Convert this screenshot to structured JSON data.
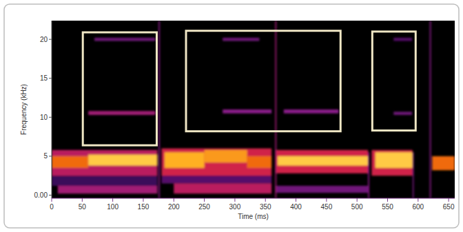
{
  "chart_data": {
    "type": "spectrogram",
    "x_label": "Time (ms)",
    "y_label": "Frequency (kHz)",
    "xlim": [
      0,
      660
    ],
    "ylim": [
      -0.4,
      22.4
    ],
    "xticks": [
      0,
      50,
      100,
      150,
      200,
      250,
      300,
      350,
      400,
      450,
      500,
      550,
      600,
      650
    ],
    "yticks": [
      {
        "value": 0,
        "label": "0.00"
      },
      5,
      10,
      15,
      20
    ],
    "cells": [
      [
        0,
        173,
        1.2,
        2.5,
        0.2
      ],
      [
        0,
        173,
        2.5,
        5.8,
        0.45
      ],
      [
        0,
        60,
        3.5,
        5.0,
        0.7
      ],
      [
        60,
        173,
        3.8,
        5.2,
        0.9
      ],
      [
        10,
        173,
        0.2,
        1.2,
        0.4
      ],
      [
        180,
        360,
        1.5,
        2.5,
        0.25
      ],
      [
        180,
        360,
        2.5,
        6.0,
        0.5
      ],
      [
        185,
        250,
        3.5,
        5.5,
        0.85
      ],
      [
        250,
        320,
        4.2,
        5.8,
        0.8
      ],
      [
        320,
        360,
        3.5,
        5.0,
        0.7
      ],
      [
        200,
        360,
        0.2,
        1.5,
        0.45
      ],
      [
        366,
        518,
        2.8,
        5.8,
        0.5
      ],
      [
        370,
        518,
        3.8,
        5.0,
        0.9
      ],
      [
        366,
        518,
        0.3,
        1.2,
        0.3
      ],
      [
        524,
        591,
        2.5,
        5.8,
        0.5
      ],
      [
        530,
        591,
        3.5,
        5.5,
        0.9
      ],
      [
        623,
        660,
        3.2,
        5.0,
        0.7
      ],
      [
        60,
        170,
        10.3,
        10.8,
        0.4
      ],
      [
        70,
        170,
        19.8,
        20.2,
        0.3
      ],
      [
        280,
        360,
        10.5,
        11.0,
        0.35
      ],
      [
        380,
        470,
        10.5,
        11.0,
        0.35
      ],
      [
        280,
        340,
        19.8,
        20.2,
        0.3
      ],
      [
        560,
        590,
        19.8,
        20.2,
        0.25
      ],
      [
        560,
        590,
        10.3,
        10.7,
        0.3
      ],
      [
        175,
        177,
        -0.4,
        22.4,
        0.35
      ],
      [
        366,
        368,
        -0.4,
        22.4,
        0.4
      ],
      [
        518,
        520,
        -0.4,
        5.5,
        0.35
      ],
      [
        591,
        593,
        -0.4,
        5.5,
        0.3
      ],
      [
        619,
        621,
        -0.4,
        22.4,
        0.35
      ]
    ],
    "boxes": [
      [
        51,
        172,
        6.4,
        20.9
      ],
      [
        220,
        473,
        8.2,
        21.1
      ],
      [
        525,
        596,
        8.3,
        21.0
      ]
    ]
  }
}
